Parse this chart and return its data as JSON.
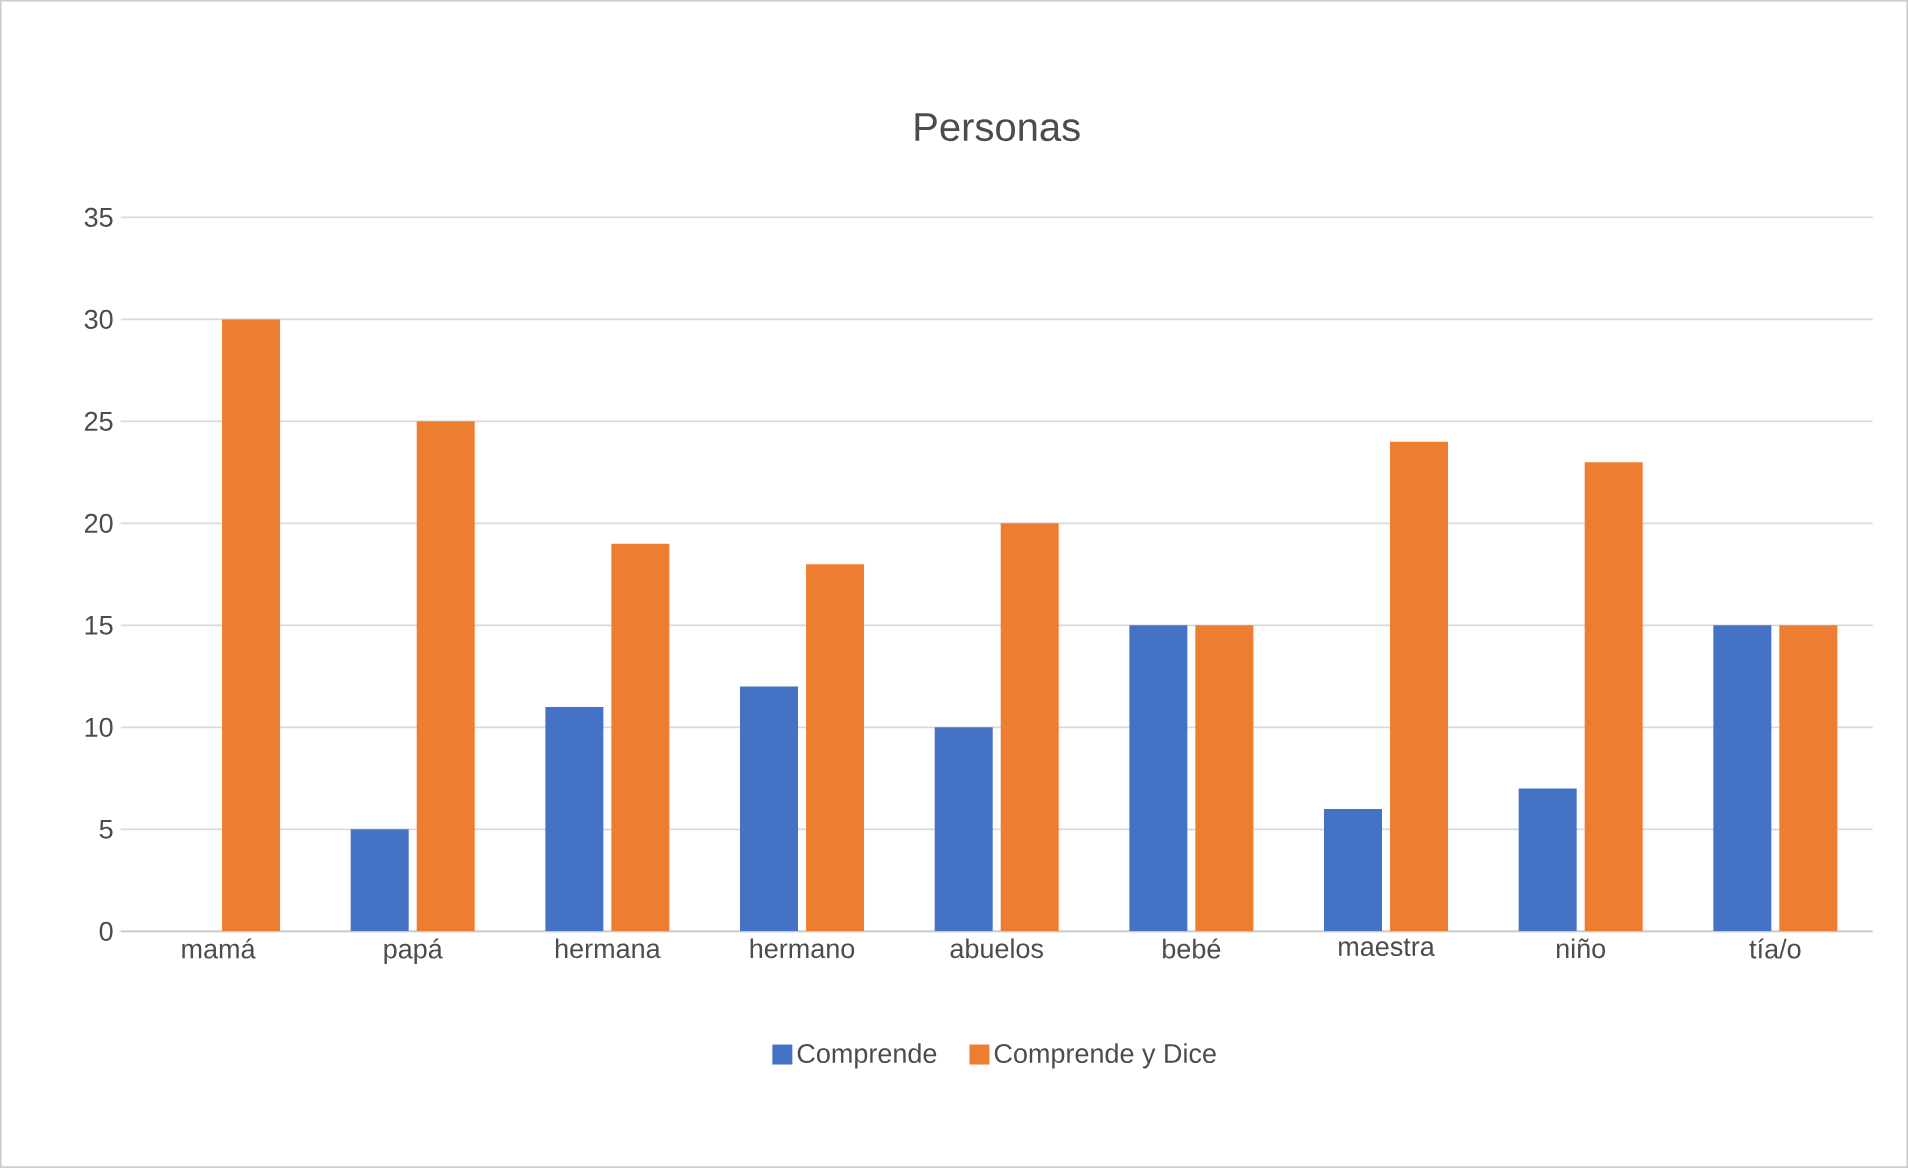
{
  "chart_data": {
    "type": "bar",
    "title": "Personas",
    "categories": [
      "mamá",
      "papá",
      "hermana",
      "hermano",
      "abuelos",
      "bebé",
      "maestra",
      "niño",
      "tía/o"
    ],
    "series": [
      {
        "name": "Comprende",
        "color": "#4472c4",
        "values": [
          0,
          5,
          11,
          12,
          10,
          15,
          6,
          7,
          15
        ]
      },
      {
        "name": "Comprende y Dice",
        "color": "#ed7d31",
        "values": [
          30,
          25,
          19,
          18,
          20,
          15,
          24,
          23,
          15
        ]
      }
    ],
    "ylim": [
      0,
      35
    ],
    "yticks": [
      0,
      5,
      10,
      15,
      20,
      25,
      30,
      35
    ],
    "grid": "y",
    "legend": "bottom"
  }
}
